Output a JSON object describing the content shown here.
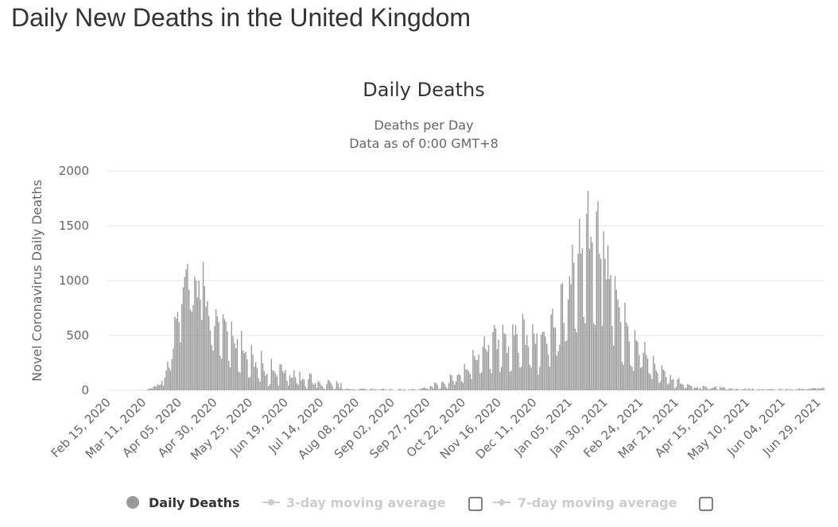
{
  "header": {
    "title": "Daily New Deaths in the United Kingdom"
  },
  "chart_data": {
    "type": "bar",
    "title": "Daily Deaths",
    "subtitle": [
      "Deaths per Day",
      "Data as of 0:00 GMT+8"
    ],
    "y_label": "Novel Coronavirus Daily Deaths",
    "categories": [
      "Feb 15, 2020",
      null,
      null,
      null,
      null,
      null,
      null,
      null,
      null,
      null,
      null,
      null,
      null,
      null,
      null,
      null,
      null,
      null,
      null,
      null,
      null,
      null,
      null,
      null,
      null,
      "Mar 11, 2020",
      null,
      null,
      null,
      null,
      null,
      null,
      null,
      null,
      null,
      null,
      null,
      null,
      null,
      null,
      null,
      null,
      null,
      null,
      null,
      null,
      null,
      null,
      null,
      null,
      "Apr 05, 2020",
      null,
      null,
      null,
      null,
      null,
      null,
      null,
      null,
      null,
      null,
      null,
      null,
      null,
      null,
      null,
      null,
      null,
      null,
      null,
      null,
      null,
      null,
      null,
      null,
      "Apr 30, 2020",
      null,
      null,
      null,
      null,
      null,
      null,
      null,
      null,
      null,
      null,
      null,
      null,
      null,
      null,
      null,
      null,
      null,
      null,
      null,
      null,
      null,
      null,
      null,
      null,
      "May 25, 2020",
      null,
      null,
      null,
      null,
      null,
      null,
      null,
      null,
      null,
      null,
      null,
      null,
      null,
      null,
      null,
      null,
      null,
      null,
      null,
      null,
      null,
      null,
      null,
      null,
      "Jun 19, 2020",
      null,
      null,
      null,
      null,
      null,
      null,
      null,
      null,
      null,
      null,
      null,
      null,
      null,
      null,
      null,
      null,
      null,
      null,
      null,
      null,
      null,
      null,
      null,
      null,
      "Jul 14, 2020",
      null,
      null,
      null,
      null,
      null,
      null,
      null,
      null,
      null,
      null,
      null,
      null,
      null,
      null,
      null,
      null,
      null,
      null,
      null,
      null,
      null,
      null,
      null,
      null,
      "Aug 08, 2020",
      null,
      null,
      null,
      null,
      null,
      null,
      null,
      null,
      null,
      null,
      null,
      null,
      null,
      null,
      null,
      null,
      null,
      null,
      null,
      null,
      null,
      null,
      null,
      null,
      "Sep 02, 2020",
      null,
      null,
      null,
      null,
      null,
      null,
      null,
      null,
      null,
      null,
      null,
      null,
      null,
      null,
      null,
      null,
      null,
      null,
      null,
      null,
      null,
      null,
      null,
      null,
      "Sep 27, 2020",
      null,
      null,
      null,
      null,
      null,
      null,
      null,
      null,
      null,
      null,
      null,
      null,
      null,
      null,
      null,
      null,
      null,
      null,
      null,
      null,
      null,
      null,
      null,
      null,
      "Oct 22, 2020",
      null,
      null,
      null,
      null,
      null,
      null,
      null,
      null,
      null,
      null,
      null,
      null,
      null,
      null,
      null,
      null,
      null,
      null,
      null,
      null,
      null,
      null,
      null,
      null,
      "Nov 16, 2020",
      null,
      null,
      null,
      null,
      null,
      null,
      null,
      null,
      null,
      null,
      null,
      null,
      null,
      null,
      null,
      null,
      null,
      null,
      null,
      null,
      null,
      null,
      null,
      null,
      "Dec 11, 2020",
      null,
      null,
      null,
      null,
      null,
      null,
      null,
      null,
      null,
      null,
      null,
      null,
      null,
      null,
      null,
      null,
      null,
      null,
      null,
      null,
      null,
      null,
      null,
      null,
      "Jan 05, 2021",
      null,
      null,
      null,
      null,
      null,
      null,
      null,
      null,
      null,
      null,
      null,
      null,
      null,
      null,
      null,
      null,
      null,
      null,
      null,
      null,
      null,
      null,
      null,
      null,
      "Jan 30, 2021",
      null,
      null,
      null,
      null,
      null,
      null,
      null,
      null,
      null,
      null,
      null,
      null,
      null,
      null,
      null,
      null,
      null,
      null,
      null,
      null,
      null,
      null,
      null,
      null,
      "Feb 24, 2021",
      null,
      null,
      null,
      null,
      null,
      null,
      null,
      null,
      null,
      null,
      null,
      null,
      null,
      null,
      null,
      null,
      null,
      null,
      null,
      null,
      null,
      null,
      null,
      null,
      "Mar 21, 2021",
      null,
      null,
      null,
      null,
      null,
      null,
      null,
      null,
      null,
      null,
      null,
      null,
      null,
      null,
      null,
      null,
      null,
      null,
      null,
      null,
      null,
      null,
      null,
      null,
      "Apr 15, 2021",
      null,
      null,
      null,
      null,
      null,
      null,
      null,
      null,
      null,
      null,
      null,
      null,
      null,
      null,
      null,
      null,
      null,
      null,
      null,
      null,
      null,
      null,
      null,
      null,
      "May 10, 2021",
      null,
      null,
      null,
      null,
      null,
      null,
      null,
      null,
      null,
      null,
      null,
      null,
      null,
      null,
      null,
      null,
      null,
      null,
      null,
      null,
      null,
      null,
      null,
      null,
      "Jun 04, 2021",
      null,
      null,
      null,
      null,
      null,
      null,
      null,
      null,
      null,
      null,
      null,
      null,
      null,
      null,
      null,
      null,
      null,
      null,
      null,
      null,
      null,
      null,
      null,
      null,
      "Jun 29, 2021",
      null,
      null,
      null,
      null
    ],
    "series": [
      {
        "name": "Daily Deaths",
        "color": "#999999",
        "values": [
          0,
          0,
          0,
          0,
          0,
          0,
          0,
          0,
          0,
          0,
          0,
          0,
          0,
          0,
          0,
          0,
          0,
          0,
          0,
          0,
          1,
          0,
          1,
          0,
          2,
          1,
          2,
          1,
          10,
          14,
          20,
          16,
          33,
          40,
          33,
          56,
          48,
          54,
          87,
          41,
          115,
          181,
          260,
          209,
          180,
          286,
          381,
          670,
          652,
          714,
          621,
          439,
          786,
          938,
          1034,
          1103,
          1152,
          917,
          737,
          717,
          778,
          1038,
          1000,
          847,
          1000,
          828,
          640,
          1172,
          950,
          760,
          813,
          677,
          546,
          413,
          360,
          586,
          739,
          674,
          621,
          315,
          288,
          693,
          649,
          626,
          539,
          268,
          210,
          627,
          494,
          428,
          384,
          468,
          170,
          160,
          545,
          363,
          338,
          351,
          282,
          118,
          121,
          412,
          324,
          215,
          256,
          204,
          111,
          77,
          359,
          245,
          173,
          135,
          151,
          36,
          55,
          287,
          184,
          176,
          151,
          128,
          43,
          233,
          238,
          176,
          157,
          184,
          89,
          43,
          136,
          112,
          119,
          184,
          120,
          64,
          50,
          171,
          89,
          107,
          100,
          36,
          15,
          100,
          155,
          149,
          65,
          52,
          67,
          22,
          85,
          75,
          48,
          35,
          17,
          11,
          58,
          95,
          85,
          66,
          40,
          11,
          16,
          85,
          64,
          25,
          67,
          14,
          4,
          11,
          16,
          12,
          12,
          8,
          10,
          8,
          6,
          4,
          3,
          11,
          16,
          12,
          18,
          11,
          8,
          2,
          5,
          18,
          10,
          12,
          9,
          6,
          4,
          3,
          8,
          15,
          12,
          8,
          4,
          3,
          6,
          12,
          6,
          3,
          1,
          2,
          3,
          16,
          12,
          2,
          10,
          6,
          2,
          3,
          9,
          2,
          14,
          11,
          7,
          3,
          2,
          12,
          9,
          20,
          21,
          27,
          17,
          17,
          6,
          37,
          37,
          20,
          71,
          66,
          49,
          12,
          19,
          76,
          77,
          59,
          33,
          17,
          65,
          143,
          138,
          87,
          50,
          80,
          137,
          150,
          136,
          81,
          67,
          241,
          191,
          189,
          174,
          151,
          102,
          367,
          310,
          280,
          274,
          326,
          156,
          162,
          397,
          492,
          378,
          355,
          413,
          194,
          156,
          532,
          595,
          563,
          376,
          462,
          168,
          213,
          598,
          520,
          511,
          341,
          398,
          168,
          181,
          603,
          501,
          595,
          511,
          341,
          206,
          215,
          696,
          648,
          414,
          504,
          397,
          231,
          205,
          603,
          516,
          424,
          519,
          144,
          215,
          506,
          533,
          532,
          489,
          424,
          326,
          215,
          691,
          744,
          574,
          570,
          316,
          357,
          416,
          964,
          981,
          613,
          445,
          454,
          830,
          1041,
          967,
          1325,
          1162,
          563,
          529,
          1243,
          1564,
          1248,
          1295,
          671,
          610,
          1610,
          1820,
          1290,
          1401,
          1348,
          610,
          592,
          1631,
          1725,
          1245,
          1200,
          587,
          1449,
          1200,
          1011,
          1322,
          1014,
          1052,
          587,
          406,
          1041,
          915,
          828,
          758,
          621,
          258,
          230,
          799,
          618,
          585,
          449,
          229,
          215,
          178,
          548,
          454,
          442,
          322,
          204,
          215,
          343,
          442,
          323,
          290,
          158,
          144,
          104,
          315,
          242,
          181,
          158,
          65,
          82,
          231,
          190,
          175,
          121,
          52,
          64,
          141,
          95,
          101,
          17,
          33,
          98,
          112,
          63,
          58,
          51,
          19,
          23,
          56,
          52,
          45,
          38,
          10,
          26,
          23,
          30,
          13,
          22,
          7,
          40,
          36,
          34,
          17,
          7,
          13,
          20,
          23,
          32,
          34,
          10,
          4,
          33,
          22,
          29,
          27,
          10,
          7,
          11,
          18,
          18,
          11,
          3,
          13,
          14,
          5,
          2,
          6,
          10,
          11,
          17,
          4,
          14,
          11,
          7,
          17,
          4,
          3,
          5,
          9,
          10,
          6,
          12,
          5,
          4,
          6,
          9,
          7,
          13,
          10,
          5,
          3,
          1,
          7,
          11,
          12,
          3,
          5,
          6,
          13,
          4,
          10,
          9,
          6,
          3,
          4,
          7,
          11,
          18,
          9,
          13,
          12,
          5,
          9,
          11,
          14,
          16,
          19,
          21,
          18,
          11,
          22,
          14,
          18,
          23,
          24
        ]
      }
    ],
    "inactive_series": [
      {
        "name": "3-day moving average",
        "color": "#cccccc"
      },
      {
        "name": "7-day moving average",
        "color": "#cccccc"
      }
    ],
    "ylim": [
      0,
      2000
    ],
    "yticks": [
      0,
      500,
      1000,
      1500,
      2000
    ],
    "grid": true
  }
}
